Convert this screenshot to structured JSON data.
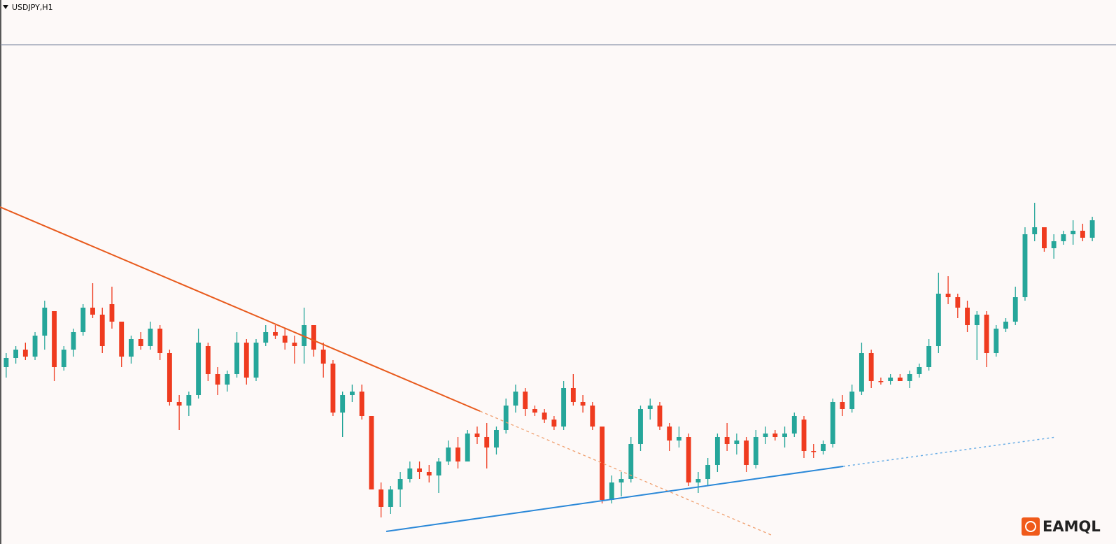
{
  "chart_data": {
    "type": "candlestick",
    "title": "USDJPY,H1",
    "watermark": "EAMQL",
    "up_color": "#26a69a",
    "down_color": "#ef3b1f",
    "ylim": [
      0,
      78
    ],
    "open": [
      25.5,
      26.8,
      28.0,
      27.0,
      30.0,
      33.5,
      25.5,
      28.0,
      30.5,
      34.0,
      33.0,
      34.5,
      32.0,
      27.0,
      29.5,
      28.5,
      31.0,
      27.5,
      20.5,
      20.0,
      21.5,
      28.5,
      24.5,
      23.0,
      24.5,
      29.0,
      24.0,
      29.0,
      30.5,
      30.0,
      29.0,
      28.5,
      31.5,
      28.0,
      26.0,
      19.0,
      21.5,
      22.0,
      18.5,
      8.0,
      5.5,
      8.0,
      9.5,
      11.0,
      10.5,
      10.0,
      12.0,
      14.0,
      12.0,
      16.0,
      15.5,
      14.0,
      16.5,
      20.0,
      22.0,
      19.5,
      19.0,
      18.0,
      17.0,
      22.5,
      20.5,
      20.0,
      17.0,
      6.5,
      9.0,
      9.5,
      14.5,
      19.5,
      20.0,
      17.0,
      15.0,
      15.5,
      9.0,
      9.5,
      11.5,
      15.5,
      14.5,
      15.0,
      11.5,
      15.5,
      16.0,
      15.5,
      16.0,
      18.0,
      13.5,
      13.5,
      14.5,
      20.5,
      19.5,
      22.0,
      27.5,
      23.5,
      23.5,
      24.0,
      23.5,
      24.5,
      25.5,
      28.5,
      36.0,
      35.5,
      34.0,
      31.5,
      33.0,
      27.5,
      31.0,
      32.0,
      35.5,
      44.5,
      45.5,
      42.5,
      43.5,
      44.5,
      45.0,
      44.0
    ],
    "high": [
      27.5,
      28.5,
      29.0,
      30.5,
      35.0,
      33.5,
      28.5,
      31.0,
      34.5,
      37.5,
      34.0,
      37.0,
      32.0,
      30.0,
      30.5,
      32.0,
      31.5,
      28.0,
      21.5,
      22.0,
      31.0,
      29.0,
      25.5,
      25.0,
      30.5,
      29.5,
      29.5,
      31.5,
      31.5,
      31.0,
      30.0,
      34.0,
      31.5,
      29.0,
      26.5,
      22.0,
      23.0,
      23.0,
      18.5,
      9.0,
      8.5,
      10.5,
      12.0,
      12.0,
      11.5,
      12.5,
      15.0,
      15.5,
      16.5,
      17.0,
      17.5,
      17.0,
      21.0,
      23.0,
      22.5,
      20.0,
      19.5,
      18.5,
      23.5,
      24.5,
      21.5,
      20.5,
      17.0,
      10.0,
      10.5,
      15.5,
      20.0,
      21.0,
      20.5,
      17.5,
      17.0,
      16.0,
      10.5,
      12.5,
      16.0,
      17.5,
      16.0,
      15.5,
      16.5,
      17.0,
      16.5,
      17.0,
      19.0,
      18.5,
      14.5,
      15.0,
      21.0,
      21.5,
      23.0,
      29.0,
      28.0,
      24.0,
      24.5,
      24.5,
      25.0,
      26.0,
      29.5,
      39.0,
      38.5,
      36.0,
      35.0,
      33.5,
      33.5,
      31.5,
      32.5,
      37.0,
      45.5,
      49.0,
      45.5,
      44.5,
      45.0,
      46.5,
      46.0,
      47.0
    ],
    "low": [
      24.0,
      26.0,
      26.5,
      26.5,
      28.0,
      23.5,
      25.0,
      27.0,
      30.0,
      32.5,
      27.5,
      31.0,
      25.5,
      26.0,
      28.0,
      28.0,
      26.5,
      20.0,
      16.5,
      18.5,
      21.0,
      23.5,
      21.5,
      22.0,
      24.0,
      23.0,
      23.5,
      28.5,
      29.5,
      28.0,
      26.0,
      26.0,
      27.0,
      24.0,
      18.5,
      15.5,
      20.5,
      18.0,
      8.0,
      4.0,
      4.5,
      5.5,
      9.0,
      9.5,
      9.0,
      7.5,
      11.5,
      11.0,
      12.0,
      14.5,
      11.0,
      13.0,
      16.0,
      19.0,
      18.5,
      18.5,
      17.5,
      16.5,
      16.5,
      20.0,
      19.0,
      16.5,
      6.0,
      6.0,
      7.0,
      9.0,
      13.5,
      18.0,
      16.5,
      13.5,
      14.0,
      8.5,
      7.5,
      8.5,
      10.5,
      13.5,
      13.0,
      10.5,
      11.0,
      14.5,
      15.0,
      14.0,
      15.5,
      12.5,
      12.5,
      13.0,
      14.0,
      18.5,
      19.0,
      21.5,
      22.5,
      23.0,
      23.0,
      23.5,
      22.5,
      24.0,
      25.0,
      27.5,
      34.5,
      32.5,
      30.5,
      26.5,
      25.5,
      27.0,
      30.5,
      31.5,
      35.0,
      43.5,
      42.0,
      41.0,
      43.0,
      43.0,
      43.5,
      43.5
    ],
    "close": [
      26.8,
      28.0,
      27.0,
      30.0,
      34.0,
      25.5,
      28.0,
      30.5,
      34.0,
      33.0,
      28.5,
      32.0,
      27.0,
      29.5,
      28.5,
      31.0,
      27.5,
      20.5,
      20.0,
      21.5,
      29.0,
      24.5,
      23.0,
      24.5,
      29.0,
      24.0,
      29.0,
      30.5,
      30.0,
      29.0,
      28.5,
      31.5,
      28.0,
      26.0,
      19.0,
      21.5,
      22.0,
      18.5,
      8.0,
      5.5,
      8.0,
      9.5,
      11.0,
      10.5,
      10.0,
      12.0,
      14.0,
      12.0,
      16.0,
      15.5,
      14.0,
      16.5,
      20.0,
      22.0,
      19.5,
      19.0,
      18.0,
      17.0,
      22.5,
      20.5,
      20.0,
      17.0,
      6.5,
      9.0,
      9.5,
      14.5,
      19.5,
      20.0,
      17.0,
      15.0,
      15.5,
      9.0,
      9.5,
      11.5,
      15.5,
      14.5,
      15.0,
      11.5,
      15.5,
      16.0,
      15.5,
      16.0,
      18.5,
      13.5,
      13.5,
      14.5,
      20.5,
      19.5,
      22.0,
      27.5,
      23.5,
      23.5,
      24.0,
      23.5,
      24.5,
      25.5,
      28.5,
      36.0,
      35.5,
      34.0,
      31.5,
      33.0,
      27.5,
      31.0,
      32.0,
      35.5,
      44.5,
      45.5,
      42.5,
      43.5,
      44.5,
      45.0,
      44.0,
      46.5
    ]
  }
}
